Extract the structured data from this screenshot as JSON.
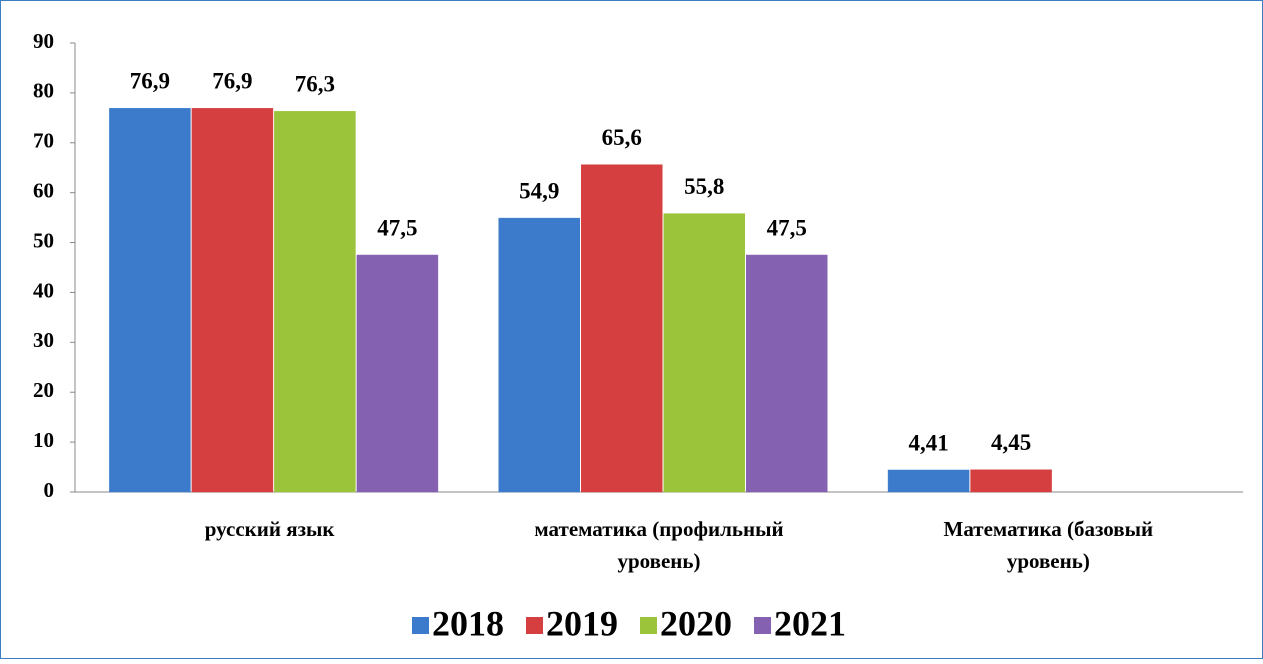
{
  "chart_data": {
    "type": "bar",
    "categories": [
      "русский язык",
      "математика (профильный уровень)",
      "Математика (базовый уровень)"
    ],
    "series": [
      {
        "name": "2018",
        "color": "#3c7bcb",
        "values": [
          76.9,
          54.9,
          4.41
        ],
        "value_labels": [
          "76,9",
          "54,9",
          "4,41"
        ]
      },
      {
        "name": "2019",
        "color": "#d63f3f",
        "values": [
          76.9,
          65.6,
          4.45
        ],
        "value_labels": [
          "76,9",
          "65,6",
          "4,45"
        ]
      },
      {
        "name": "2020",
        "color": "#9cc43b",
        "values": [
          76.3,
          55.8,
          null
        ],
        "value_labels": [
          "76,3",
          "55,8",
          null
        ]
      },
      {
        "name": "2021",
        "color": "#8561b1",
        "values": [
          47.5,
          47.5,
          null
        ],
        "value_labels": [
          "47,5",
          "47,5",
          null
        ]
      }
    ],
    "ylim": [
      0,
      90
    ],
    "yticks": [
      0,
      10,
      20,
      30,
      40,
      50,
      60,
      70,
      80,
      90
    ],
    "legend": "bottom"
  }
}
